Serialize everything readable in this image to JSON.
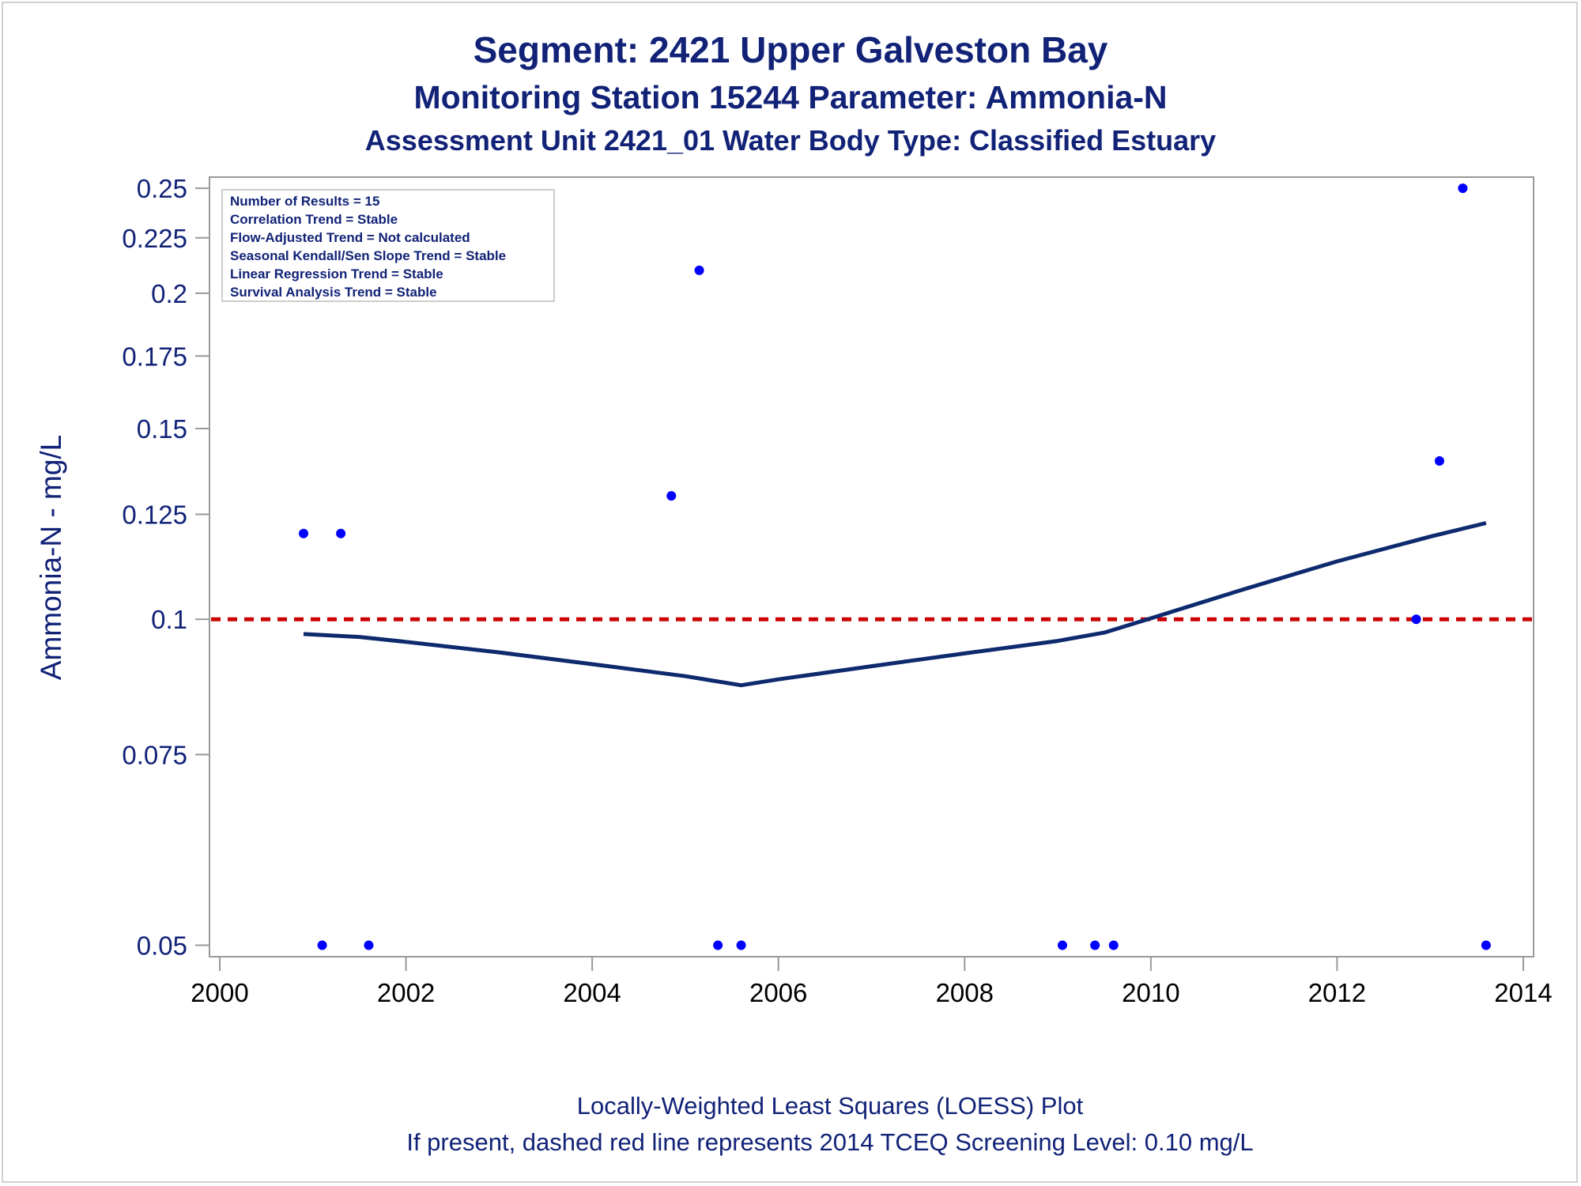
{
  "chart_data": {
    "type": "scatter",
    "title": "Segment: 2421  Upper Galveston Bay",
    "subtitle_1": "Monitoring Station 15244 Parameter: Ammonia-N",
    "subtitle_2": "Assessment Unit 2421_01   Water Body Type: Classified Estuary",
    "ylabel": "Ammonia-N - mg/L",
    "xlabel": "",
    "footnote_1": "Locally-Weighted Least Squares (LOESS) Plot",
    "footnote_2": "If present, dashed red line represents 2014 TCEQ Screening Level: 0.10 mg/L",
    "y_scale": "log",
    "xlim": [
      2000,
      2014
    ],
    "ylim": [
      0.0488,
      0.256
    ],
    "x_ticks": [
      "2000",
      "2002",
      "2004",
      "2006",
      "2008",
      "2010",
      "2012",
      "2014"
    ],
    "y_ticks": [
      "0.05",
      "0.075",
      "0.1",
      "0.125",
      "0.15",
      "0.175",
      "0.2",
      "0.225",
      "0.25"
    ],
    "grid": false,
    "legend_box": [
      "Number of Results = 15",
      "Correlation Trend = Stable",
      "Flow-Adjusted Trend = Not calculated",
      "Seasonal Kendall/Sen Slope Trend = Stable",
      "Linear Regression Trend = Stable",
      "Survival Analysis Trend = Stable"
    ],
    "legend_placement": "top-left",
    "points": [
      {
        "x": 2000.9,
        "y": 0.12
      },
      {
        "x": 2001.1,
        "y": 0.05
      },
      {
        "x": 2001.3,
        "y": 0.12
      },
      {
        "x": 2001.6,
        "y": 0.05
      },
      {
        "x": 2004.85,
        "y": 0.13
      },
      {
        "x": 2005.15,
        "y": 0.21
      },
      {
        "x": 2005.35,
        "y": 0.05
      },
      {
        "x": 2005.6,
        "y": 0.05
      },
      {
        "x": 2009.05,
        "y": 0.05
      },
      {
        "x": 2009.4,
        "y": 0.05
      },
      {
        "x": 2009.6,
        "y": 0.05
      },
      {
        "x": 2012.85,
        "y": 0.1
      },
      {
        "x": 2013.1,
        "y": 0.14
      },
      {
        "x": 2013.35,
        "y": 0.25
      },
      {
        "x": 2013.6,
        "y": 0.05
      }
    ],
    "loess": [
      {
        "x": 2000.9,
        "y": 0.0969
      },
      {
        "x": 2001.5,
        "y": 0.0963
      },
      {
        "x": 2002.0,
        "y": 0.0953
      },
      {
        "x": 2003.0,
        "y": 0.0932
      },
      {
        "x": 2004.0,
        "y": 0.0909
      },
      {
        "x": 2005.0,
        "y": 0.0886
      },
      {
        "x": 2005.6,
        "y": 0.0869
      },
      {
        "x": 2006.0,
        "y": 0.088
      },
      {
        "x": 2007.0,
        "y": 0.0905
      },
      {
        "x": 2008.0,
        "y": 0.093
      },
      {
        "x": 2009.0,
        "y": 0.0955
      },
      {
        "x": 2009.5,
        "y": 0.0972
      },
      {
        "x": 2010.0,
        "y": 0.1002
      },
      {
        "x": 2011.0,
        "y": 0.1066
      },
      {
        "x": 2012.0,
        "y": 0.1131
      },
      {
        "x": 2013.0,
        "y": 0.1192
      },
      {
        "x": 2013.6,
        "y": 0.1227
      }
    ],
    "screening_level": 0.1,
    "colors": {
      "text": "#112277",
      "points": "#0000ff",
      "loess": "#0d2a6e",
      "screening": "#cc0000",
      "axis": "#999999"
    }
  }
}
